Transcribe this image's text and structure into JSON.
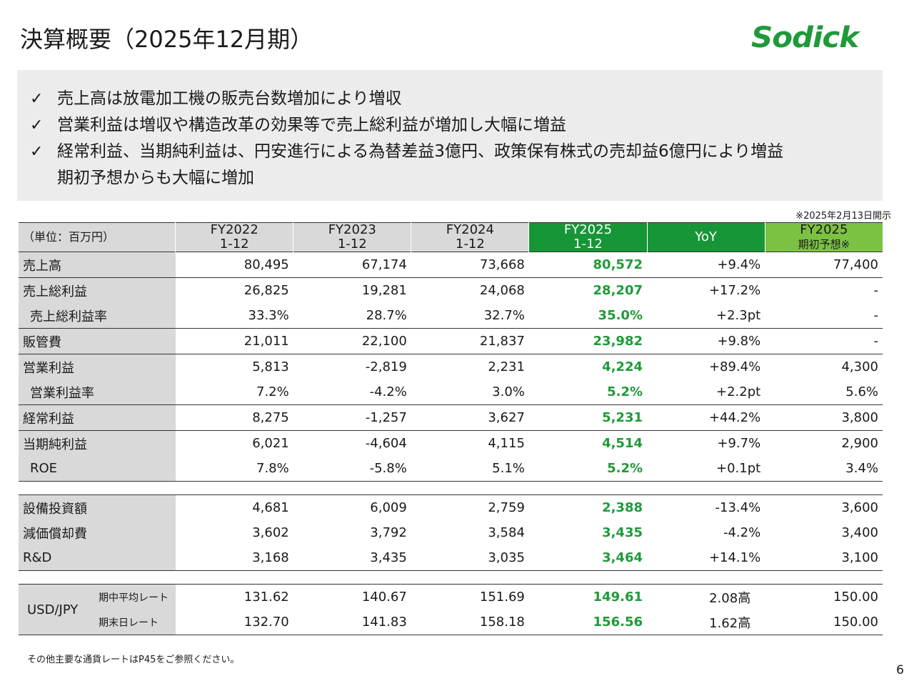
{
  "title": "決算概要（2025年12月期）",
  "logo_text": "Sodick",
  "bullets": [
    "売上高は放電加工機の販売台数増加により増収",
    "営業利益は増収や構造改革の効果等で売上総利益が増加し大幅に増益",
    "経常利益、当期純利益は、円安進行による為替差益3億円、政策保有株式の売却益6億円により増益"
  ],
  "bullet_continuation": "期初予想からも大幅に増加",
  "check_glyph": "✓",
  "note_top": "※2025年2月13日開示",
  "header": {
    "unit": "（単位：百万円）",
    "cols": [
      {
        "line1": "FY2022",
        "line2": "1-12"
      },
      {
        "line1": "FY2023",
        "line2": "1-12"
      },
      {
        "line1": "FY2024",
        "line2": "1-12"
      },
      {
        "line1": "FY2025",
        "line2": "1-12"
      },
      {
        "line1": "YoY",
        "line2": ""
      },
      {
        "line1": "FY2025",
        "line2": "期初予想※"
      }
    ]
  },
  "rows": {
    "sales": {
      "label": "売上高",
      "v": [
        "80,495",
        "67,174",
        "73,668",
        "80,572",
        "+9.4%",
        "77,400"
      ]
    },
    "gross_profit": {
      "label": "売上総利益",
      "v": [
        "26,825",
        "19,281",
        "24,068",
        "28,207",
        "+17.2%",
        "-"
      ]
    },
    "gross_margin": {
      "label": "売上総利益率",
      "v": [
        "33.3%",
        "28.7%",
        "32.7%",
        "35.0%",
        "+2.3pt",
        "-"
      ]
    },
    "sga": {
      "label": "販管費",
      "v": [
        "21,011",
        "22,100",
        "21,837",
        "23,982",
        "+9.8%",
        "-"
      ]
    },
    "op_income": {
      "label": "営業利益",
      "v": [
        "5,813",
        "-2,819",
        "2,231",
        "4,224",
        "+89.4%",
        "4,300"
      ]
    },
    "op_margin": {
      "label": "営業利益率",
      "v": [
        "7.2%",
        "-4.2%",
        "3.0%",
        "5.2%",
        "+2.2pt",
        "5.6%"
      ]
    },
    "ordinary": {
      "label": "経常利益",
      "v": [
        "8,275",
        "-1,257",
        "3,627",
        "5,231",
        "+44.2%",
        "3,800"
      ]
    },
    "net_income": {
      "label": "当期純利益",
      "v": [
        "6,021",
        "-4,604",
        "4,115",
        "4,514",
        "+9.7%",
        "2,900"
      ]
    },
    "roe": {
      "label": "ROE",
      "v": [
        "7.8%",
        "-5.8%",
        "5.1%",
        "5.2%",
        "+0.1pt",
        "3.4%"
      ]
    },
    "capex": {
      "label": "設備投資額",
      "v": [
        "4,681",
        "6,009",
        "2,759",
        "2,388",
        "-13.4%",
        "3,600"
      ]
    },
    "depreciation": {
      "label": "減価償却費",
      "v": [
        "3,602",
        "3,792",
        "3,584",
        "3,435",
        "-4.2%",
        "3,400"
      ]
    },
    "rnd": {
      "label": "R&D",
      "v": [
        "3,168",
        "3,435",
        "3,035",
        "3,464",
        "+14.1%",
        "3,100"
      ]
    }
  },
  "fx": {
    "label": "USD/JPY",
    "avg": {
      "label": "期中平均レート",
      "v": [
        "131.62",
        "140.67",
        "151.69",
        "149.61",
        "2.08高",
        "150.00"
      ]
    },
    "end": {
      "label": "期末日レート",
      "v": [
        "132.70",
        "141.83",
        "158.18",
        "156.56",
        "1.62高",
        "150.00"
      ]
    }
  },
  "footnote": "その他主要な通貨レートはP45をご参照ください。",
  "page_number": "6",
  "colors": {
    "accent_dark": "#169636",
    "accent_light": "#7cc242",
    "highlight_text": "#1f9a3a",
    "panel": "#ececec",
    "label_bg": "#d9d9d9"
  }
}
